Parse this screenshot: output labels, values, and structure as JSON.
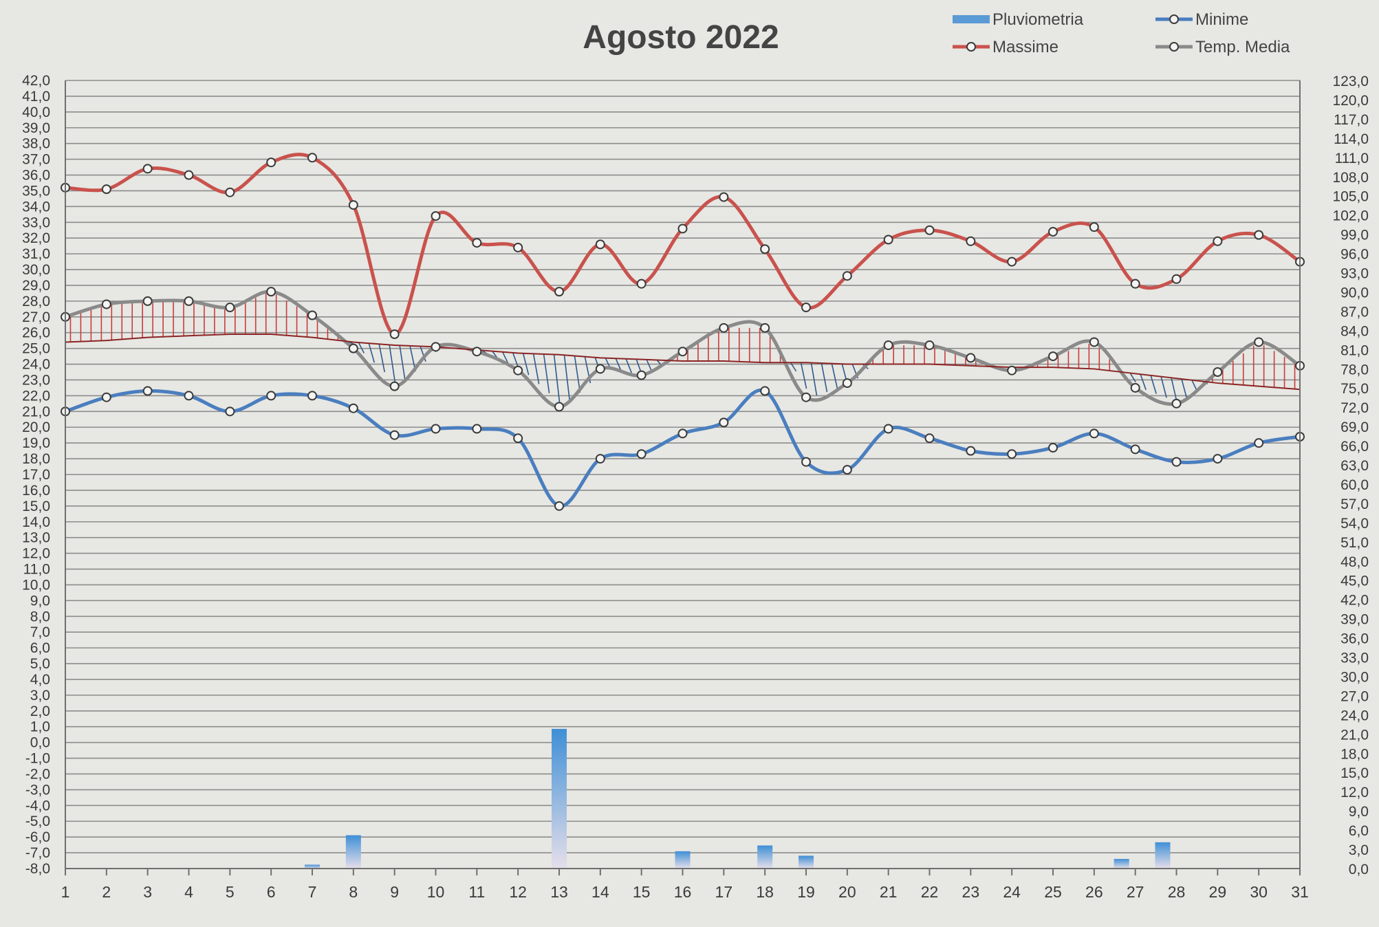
{
  "chart_data": {
    "type": "line",
    "title": "Agosto 2022",
    "categories": [
      "1",
      "2",
      "3",
      "4",
      "5",
      "6",
      "7",
      "8",
      "9",
      "10",
      "11",
      "12",
      "13",
      "14",
      "15",
      "16",
      "17",
      "18",
      "19",
      "20",
      "21",
      "22",
      "23",
      "24",
      "25",
      "26",
      "27",
      "28",
      "29",
      "30",
      "31"
    ],
    "left_axis": {
      "min": -8.0,
      "max": 42.0,
      "step": 1.0
    },
    "right_axis": {
      "min": 0.0,
      "max": 123.0,
      "step": 3.0
    },
    "grid": true,
    "legend_position": "top-right",
    "series": [
      {
        "name": "Pluviometria",
        "type": "bar",
        "axis": "right",
        "color": "#5b9bd5",
        "values": [
          0,
          0,
          0,
          0,
          0,
          0,
          0.6,
          5.2,
          0,
          0,
          0,
          0,
          21.8,
          0,
          0,
          2.7,
          0.1,
          3.6,
          2.0,
          0,
          0,
          0,
          0,
          0,
          0,
          0,
          1.5,
          4.1,
          0,
          0,
          0
        ]
      },
      {
        "name": "Minime",
        "type": "line",
        "axis": "left",
        "color": "#4a7ebf",
        "values": [
          21.0,
          21.9,
          22.3,
          22.0,
          21.0,
          22.0,
          22.0,
          21.2,
          19.5,
          19.9,
          19.9,
          19.3,
          15.0,
          18.0,
          18.3,
          19.6,
          20.3,
          22.3,
          17.8,
          17.3,
          19.9,
          19.3,
          18.5,
          18.3,
          18.7,
          19.6,
          18.6,
          17.8,
          18.0,
          19.0,
          19.4
        ]
      },
      {
        "name": "Massime",
        "type": "line",
        "axis": "left",
        "color": "#c9524d",
        "values": [
          35.2,
          35.1,
          36.4,
          36.0,
          34.9,
          36.8,
          37.1,
          34.1,
          25.9,
          33.4,
          31.7,
          31.4,
          28.6,
          31.6,
          29.1,
          32.6,
          34.6,
          31.3,
          27.6,
          29.6,
          31.9,
          32.5,
          31.8,
          30.5,
          32.4,
          32.7,
          29.1,
          29.4,
          31.8,
          32.2,
          30.5
        ]
      },
      {
        "name": "Temp. Media",
        "type": "line",
        "axis": "left",
        "color": "#8a8a8a",
        "values": [
          27.0,
          27.8,
          28.0,
          28.0,
          27.6,
          28.6,
          27.1,
          25.0,
          22.6,
          25.1,
          24.8,
          23.6,
          21.3,
          23.7,
          23.3,
          24.8,
          26.3,
          26.3,
          21.9,
          22.8,
          25.2,
          25.2,
          24.4,
          23.6,
          24.5,
          25.4,
          22.5,
          21.5,
          23.5,
          25.4,
          23.9
        ]
      },
      {
        "name": "",
        "type": "trend",
        "axis": "left",
        "color": "#8b2424",
        "values": [
          25.4,
          25.5,
          25.7,
          25.8,
          25.9,
          25.9,
          25.7,
          25.4,
          25.2,
          25.1,
          24.9,
          24.7,
          24.6,
          24.4,
          24.3,
          24.2,
          24.2,
          24.1,
          24.1,
          24.0,
          24.0,
          24.0,
          23.9,
          23.8,
          23.8,
          23.7,
          23.4,
          23.1,
          22.8,
          22.6,
          22.4
        ]
      }
    ]
  },
  "colors": {
    "background": "#e7e7e3",
    "grid": "#8c8c8c",
    "above_hatch": "#c83c3c",
    "below_hatch": "#2e5a8c"
  }
}
